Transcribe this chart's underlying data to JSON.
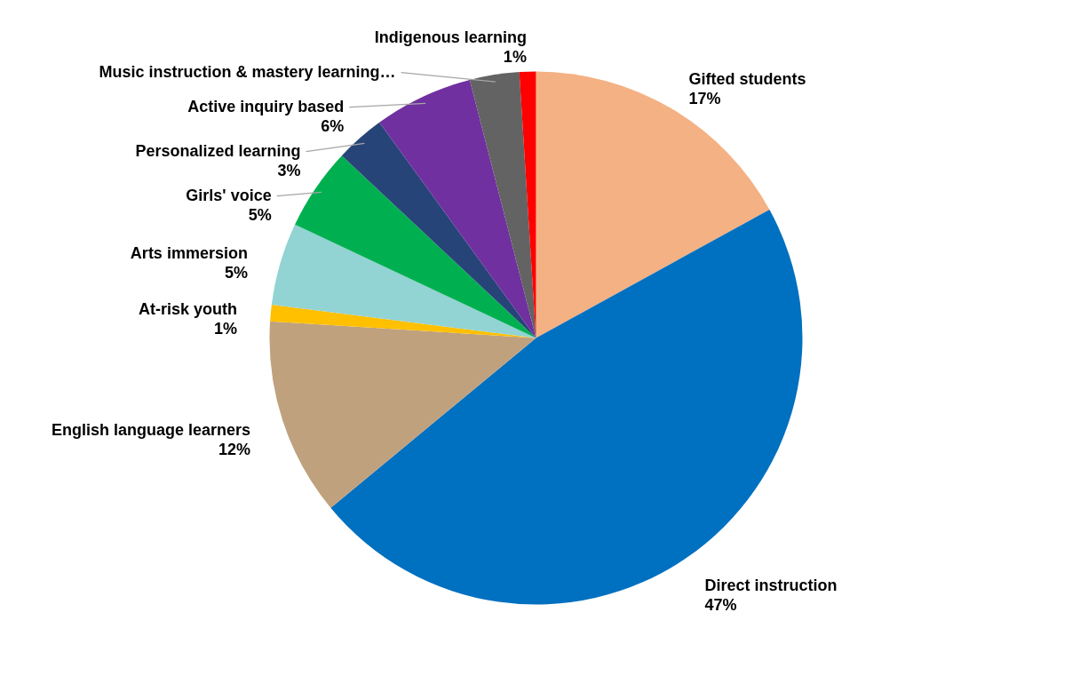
{
  "chart_data": {
    "type": "pie",
    "categories": [
      "Gifted students",
      "Direct instruction",
      "English language learners",
      "At-risk youth",
      "Arts immersion",
      "Girls' voice",
      "Personalized learning",
      "Active inquiry based",
      "Music instruction & mastery learning…",
      "Indigenous learning"
    ],
    "values": [
      17,
      47,
      12,
      1,
      5,
      5,
      3,
      6,
      3,
      1
    ],
    "value_labels": [
      "17%",
      "47%",
      "12%",
      "1%",
      "5%",
      "5%",
      "3%",
      "6%",
      null,
      "1%"
    ],
    "colors": [
      "#f4b183",
      "#0070c0",
      "#c0a17e",
      "#ffc000",
      "#92d3d3",
      "#00b050",
      "#264478",
      "#7030a0",
      "#636363",
      "#ff0000"
    ]
  }
}
